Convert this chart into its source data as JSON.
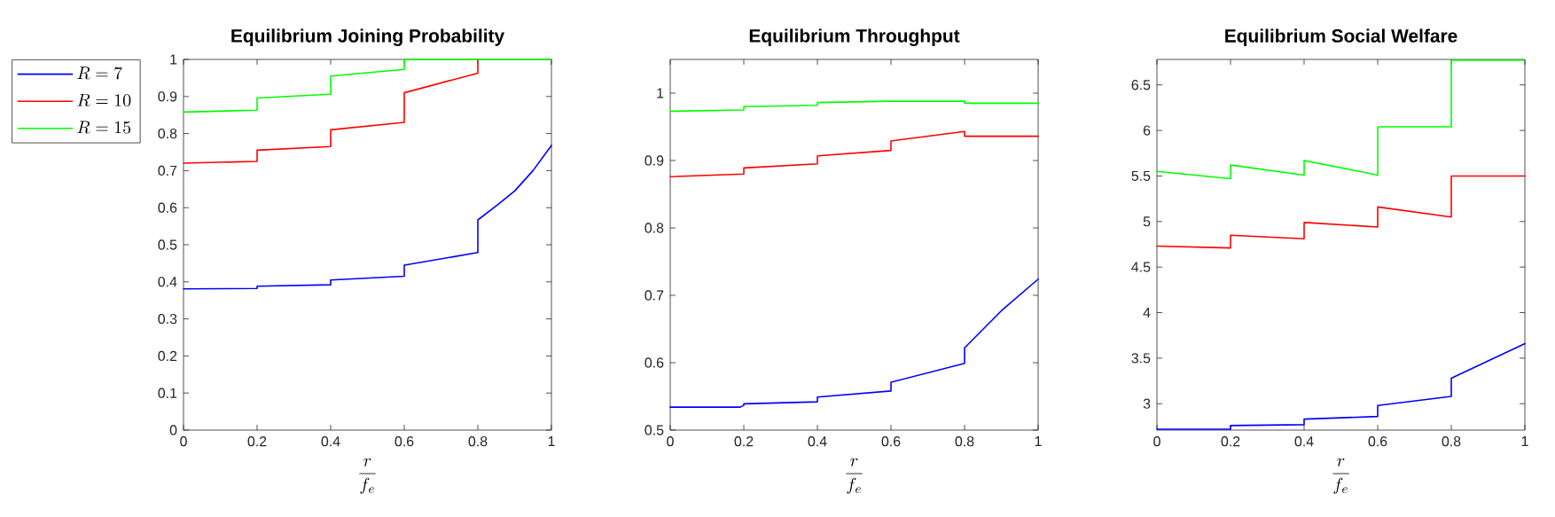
{
  "chart_data": [
    {
      "type": "line",
      "title": "Equilibrium Joining Probability",
      "xlabel": "\\frac{r}{f_e}",
      "legend": "top left",
      "xlim": [
        0,
        1
      ],
      "ylim": [
        0,
        1
      ],
      "xticks": [
        0,
        0.2,
        0.4,
        0.6,
        0.8,
        1
      ],
      "yticks": [
        0,
        0.1,
        0.2,
        0.3,
        0.4,
        0.5,
        0.6,
        0.7,
        0.8,
        0.9,
        1
      ],
      "series": [
        {
          "name": "R = 7",
          "color": "#0000ff",
          "x": [
            0,
            0.2,
            0.2,
            0.4,
            0.4,
            0.6,
            0.6,
            0.8,
            0.8,
            0.85,
            0.9,
            0.95,
            1
          ],
          "values": [
            0.381,
            0.382,
            0.388,
            0.392,
            0.405,
            0.415,
            0.445,
            0.479,
            0.567,
            0.605,
            0.645,
            0.7,
            0.768
          ]
        },
        {
          "name": "R = 10",
          "color": "#ff0000",
          "x": [
            0,
            0.2,
            0.2,
            0.4,
            0.4,
            0.6,
            0.6,
            0.8,
            0.8
          ],
          "values": [
            0.72,
            0.725,
            0.755,
            0.765,
            0.81,
            0.83,
            0.91,
            0.963,
            1
          ]
        },
        {
          "name": "R = 15",
          "color": "#00ff00",
          "x": [
            0,
            0.2,
            0.2,
            0.4,
            0.4,
            0.6,
            0.6,
            1
          ],
          "values": [
            0.858,
            0.863,
            0.896,
            0.906,
            0.955,
            0.973,
            1,
            1
          ]
        }
      ]
    },
    {
      "type": "line",
      "title": "Equilibrium Throughput",
      "xlabel": "\\frac{r}{f_e}",
      "xlim": [
        0,
        1
      ],
      "ylim": [
        0.5,
        1.05
      ],
      "xticks": [
        0,
        0.2,
        0.4,
        0.6,
        0.8,
        1
      ],
      "yticks": [
        0.5,
        0.6,
        0.7,
        0.8,
        0.9,
        1
      ],
      "series": [
        {
          "color": "#0000ff",
          "x": [
            0,
            0.19,
            0.2,
            0.2,
            0.4,
            0.4,
            0.6,
            0.6,
            0.8,
            0.8,
            0.9,
            1
          ],
          "values": [
            0.534,
            0.534,
            0.537,
            0.539,
            0.542,
            0.549,
            0.558,
            0.571,
            0.599,
            0.622,
            0.677,
            0.724
          ]
        },
        {
          "color": "#ff0000",
          "x": [
            0,
            0.2,
            0.2,
            0.4,
            0.4,
            0.6,
            0.6,
            0.8,
            0.8,
            1
          ],
          "values": [
            0.876,
            0.88,
            0.889,
            0.895,
            0.907,
            0.915,
            0.929,
            0.943,
            0.936,
            0.936
          ]
        },
        {
          "color": "#00ff00",
          "x": [
            0,
            0.2,
            0.2,
            0.4,
            0.4,
            0.6,
            0.8,
            0.8,
            1
          ],
          "values": [
            0.973,
            0.975,
            0.98,
            0.982,
            0.986,
            0.988,
            0.988,
            0.985,
            0.985
          ]
        }
      ]
    },
    {
      "type": "line",
      "title": "Equilibrium Social Welfare",
      "xlabel": "\\frac{r}{f_e}",
      "xlim": [
        0,
        1
      ],
      "ylim": [
        2.71,
        6.78
      ],
      "xticks": [
        0,
        0.2,
        0.4,
        0.6,
        0.8,
        1
      ],
      "yticks": [
        3,
        3.5,
        4,
        4.5,
        5,
        5.5,
        6,
        6.5
      ],
      "series": [
        {
          "color": "#0000ff",
          "x": [
            0,
            0.2,
            0.2,
            0.4,
            0.4,
            0.6,
            0.6,
            0.8,
            0.8,
            1
          ],
          "values": [
            2.72,
            2.72,
            2.76,
            2.77,
            2.83,
            2.86,
            2.98,
            3.08,
            3.28,
            3.66
          ]
        },
        {
          "color": "#ff0000",
          "x": [
            0,
            0.2,
            0.2,
            0.4,
            0.4,
            0.6,
            0.6,
            0.8,
            0.8,
            1
          ],
          "values": [
            4.73,
            4.71,
            4.85,
            4.81,
            4.99,
            4.94,
            5.16,
            5.05,
            5.5,
            5.5
          ]
        },
        {
          "color": "#00ff00",
          "x": [
            0,
            0.2,
            0.2,
            0.4,
            0.4,
            0.6,
            0.6,
            0.8,
            0.8,
            1
          ],
          "values": [
            5.55,
            5.47,
            5.62,
            5.51,
            5.67,
            5.51,
            6.04,
            6.04,
            6.77,
            6.77
          ]
        }
      ]
    }
  ]
}
